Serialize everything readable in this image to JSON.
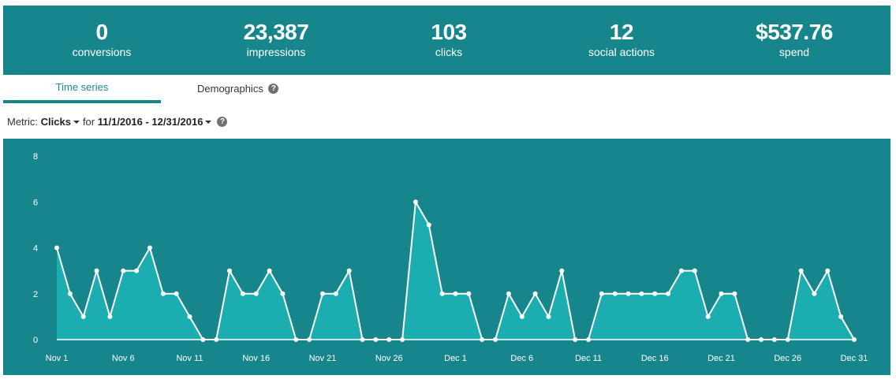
{
  "stats": [
    {
      "value": "0",
      "label": "conversions"
    },
    {
      "value": "23,387",
      "label": "impressions"
    },
    {
      "value": "103",
      "label": "clicks"
    },
    {
      "value": "12",
      "label": "social actions"
    },
    {
      "value": "$537.76",
      "label": "spend"
    }
  ],
  "tabs": {
    "time_series": "Time series",
    "demographics": "Demographics",
    "help_glyph": "?"
  },
  "metric": {
    "prefix": "Metric:",
    "value": "Clicks",
    "for_label": "for",
    "date_range": "11/1/2016 - 12/31/2016",
    "help_glyph": "?"
  },
  "colors": {
    "header_bg": "#16868c",
    "chart_bg": "#16868c",
    "area_fill": "#1cadb1",
    "line": "#ffffff"
  },
  "chart_data": {
    "type": "area",
    "title": "",
    "xlabel": "",
    "ylabel": "",
    "ylim": [
      0,
      8
    ],
    "y_ticks": [
      0,
      2,
      4,
      6,
      8
    ],
    "x_tick_labels": [
      "Nov 1",
      "Nov 6",
      "Nov 11",
      "Nov 16",
      "Nov 21",
      "Nov 26",
      "Dec 1",
      "Dec 6",
      "Dec 11",
      "Dec 16",
      "Dec 21",
      "Dec 26",
      "Dec 31"
    ],
    "x_tick_every_days": 5,
    "grid": false,
    "series": [
      {
        "values": [
          4,
          2,
          1,
          3,
          1,
          3,
          3,
          4,
          2,
          2,
          1,
          0,
          0,
          3,
          2,
          2,
          3,
          2,
          0,
          0,
          2,
          2,
          3,
          0,
          0,
          0,
          0,
          6,
          5,
          2,
          2,
          2,
          0,
          0,
          2,
          1,
          2,
          1,
          3,
          0,
          0,
          2,
          2,
          2,
          2,
          2,
          2,
          3,
          3,
          1,
          2,
          2,
          0,
          0,
          0,
          0,
          3,
          2,
          3,
          1,
          0
        ]
      }
    ]
  }
}
